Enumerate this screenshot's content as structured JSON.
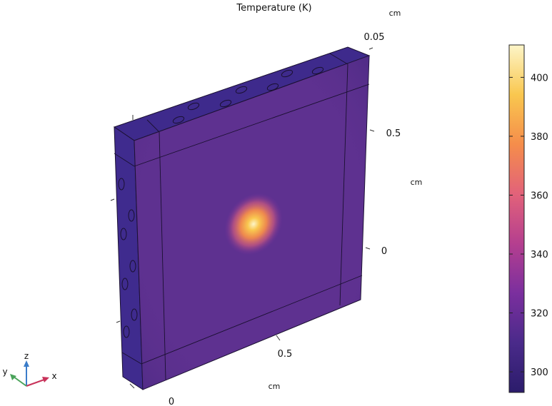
{
  "chart_data": {
    "type": "heatmap",
    "title": "Temperature (K)",
    "quantity": "Temperature",
    "unit": "K",
    "colormap": "plasma-like (dark purple → magenta → orange → pale yellow)",
    "colormap_stops": [
      "#2b1c6b",
      "#4a2a8a",
      "#7b2f9e",
      "#b53f8f",
      "#e2627a",
      "#f58d4b",
      "#f9c74f",
      "#fdf5c8"
    ],
    "colorbar": {
      "ticks": [
        300,
        320,
        340,
        360,
        380,
        400
      ],
      "tick_labels": [
        "300",
        "320",
        "340",
        "360",
        "380",
        "400"
      ],
      "range": [
        293,
        411
      ]
    },
    "axes": {
      "x": {
        "unit_label": "cm",
        "tick_labels": [
          "0",
          "0.5"
        ]
      },
      "y": {
        "unit_label": "cm",
        "tick_labels": [
          "0",
          "0.5"
        ]
      },
      "z": {
        "unit_label": "cm",
        "tick_labels": [
          "0.05"
        ]
      }
    },
    "hotspot": {
      "position": "center of front face",
      "max_value": 411
    },
    "triad": {
      "labels": [
        "x",
        "y",
        "z"
      ]
    }
  }
}
